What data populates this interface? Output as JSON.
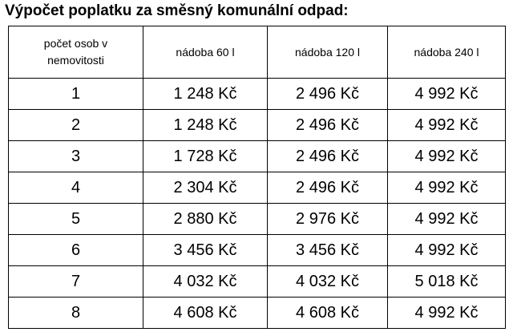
{
  "title": "Výpočet poplatku za směsný komunální odpad:",
  "table": {
    "header": [
      "počet osob v nemovitosti",
      "nádoba 60 l",
      "nádoba 120 l",
      "nádoba 240 l"
    ],
    "rows": [
      [
        "1",
        "1 248 Kč",
        "2 496 Kč",
        "4 992 Kč"
      ],
      [
        "2",
        "1 248 Kč",
        "2 496 Kč",
        "4 992 Kč"
      ],
      [
        "3",
        "1 728 Kč",
        "2 496 Kč",
        "4 992 Kč"
      ],
      [
        "4",
        "2 304 Kč",
        "2 496 Kč",
        "4 992 Kč"
      ],
      [
        "5",
        "2 880 Kč",
        "2 976 Kč",
        "4 992 Kč"
      ],
      [
        "6",
        "3 456 Kč",
        "3 456 Kč",
        "4 992 Kč"
      ],
      [
        "7",
        "4 032 Kč",
        "4 032 Kč",
        "5 018 Kč"
      ],
      [
        "8",
        "4 608 Kč",
        "4 608 Kč",
        "4 992 Kč"
      ]
    ]
  }
}
